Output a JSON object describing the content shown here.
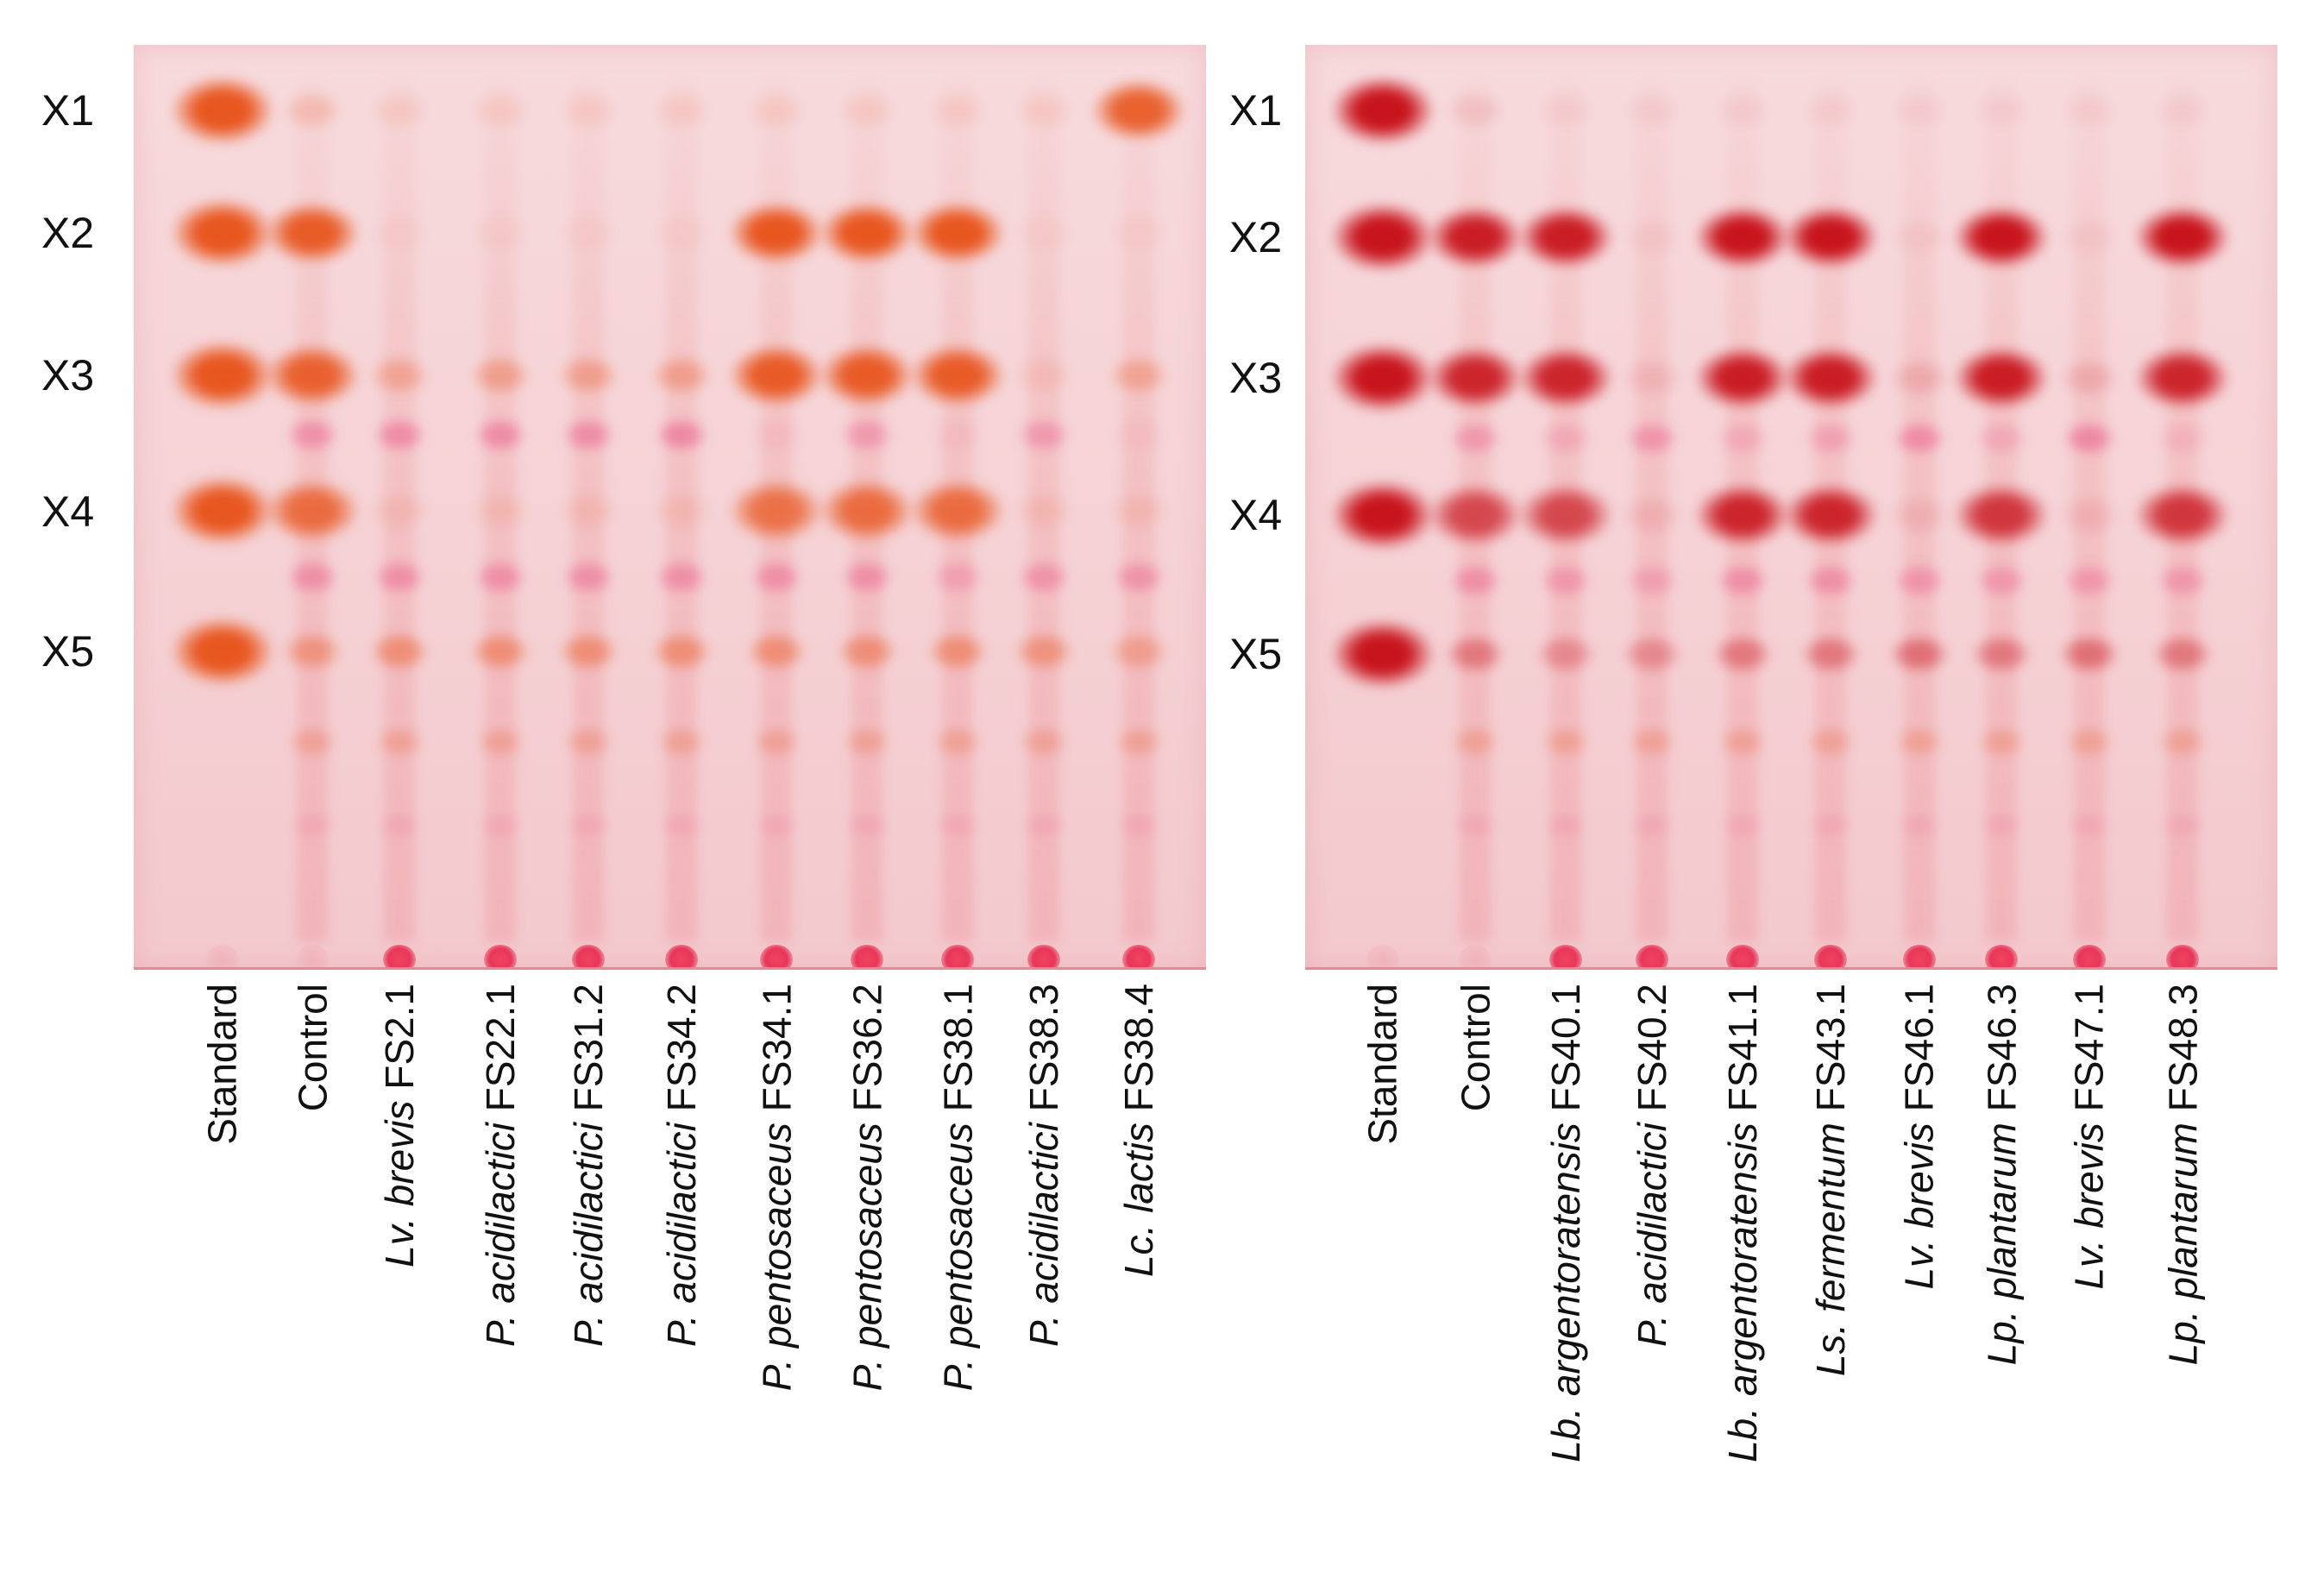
{
  "row_labels": [
    "X1",
    "X2",
    "X3",
    "X4",
    "X5"
  ],
  "panels": [
    {
      "id": "left",
      "lanes": [
        {
          "species": "",
          "strain": "Standard"
        },
        {
          "species": "",
          "strain": "Control"
        },
        {
          "species": "Lv. brevis",
          "strain": "FS2.1"
        },
        {
          "species": "P. acidilactici",
          "strain": "FS22.1"
        },
        {
          "species": "P. acidilactici",
          "strain": "FS31.2"
        },
        {
          "species": "P. acidilactici",
          "strain": "FS34.2"
        },
        {
          "species": "P. pentosaceus",
          "strain": "FS34.1"
        },
        {
          "species": "P. pentosaceus",
          "strain": "FS36.2"
        },
        {
          "species": "P. pentosaceus",
          "strain": "FS38.1"
        },
        {
          "species": "P. acidilactici",
          "strain": "FS38.3"
        },
        {
          "species": "Lc. lactis",
          "strain": "FS38.4"
        }
      ]
    },
    {
      "id": "right",
      "lanes": [
        {
          "species": "",
          "strain": "Standard"
        },
        {
          "species": "",
          "strain": "Control"
        },
        {
          "species": "Lb. argentoratensis",
          "strain": "FS40.1"
        },
        {
          "species": "P. acidilactici",
          "strain": "FS40.2"
        },
        {
          "species": "Lb. argentoratensis",
          "strain": "FS41.1"
        },
        {
          "species": "Ls. fermentum",
          "strain": "FS43.1"
        },
        {
          "species": "Lv. brevis",
          "strain": "FS46.1"
        },
        {
          "species": "Lp. plantarum",
          "strain": "FS46.3"
        },
        {
          "species": "Lv. brevis",
          "strain": "FS47.1"
        },
        {
          "species": "Lp. plantarum",
          "strain": "FS48.3"
        }
      ]
    }
  ],
  "colors": {
    "plate": "#f5d3d6",
    "orange_spot": "#e8561f",
    "red_spot": "#c8141c",
    "pink_spot": "#ec6f95",
    "origin": "#ea3a5c"
  }
}
